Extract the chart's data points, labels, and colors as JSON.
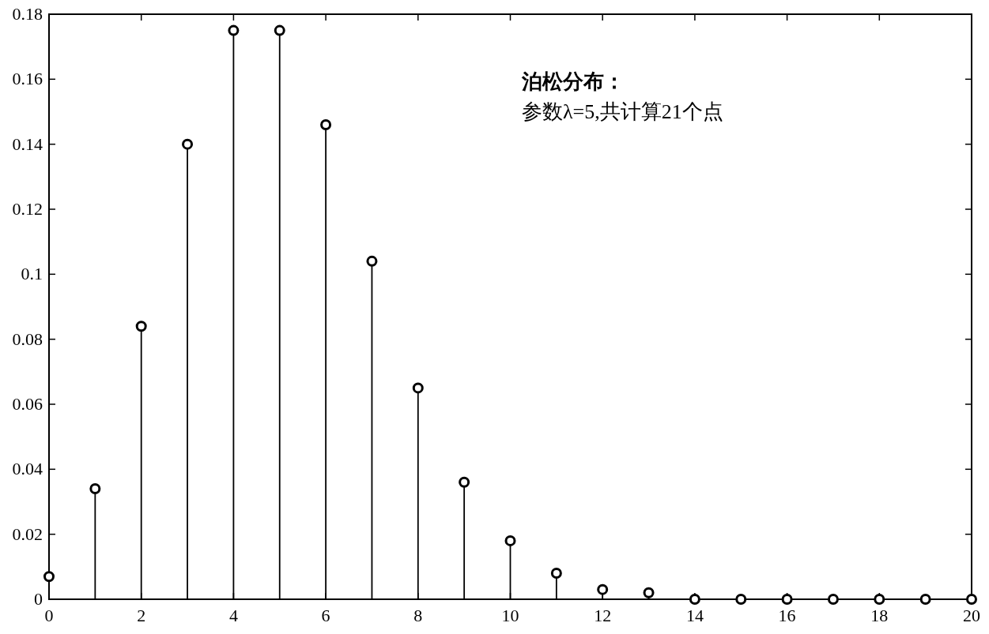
{
  "chart_data": {
    "type": "lollipop",
    "x": [
      0,
      1,
      2,
      3,
      4,
      5,
      6,
      7,
      8,
      9,
      10,
      11,
      12,
      13,
      14,
      15,
      16,
      17,
      18,
      19,
      20
    ],
    "values": [
      0.007,
      0.034,
      0.084,
      0.14,
      0.175,
      0.175,
      0.146,
      0.104,
      0.065,
      0.036,
      0.018,
      0.008,
      0.003,
      0.002,
      0,
      0,
      0,
      0,
      0,
      0,
      0
    ],
    "color": "#000000",
    "marker": "circle",
    "xlim": [
      0,
      20
    ],
    "xticks": [
      0,
      2,
      4,
      6,
      8,
      10,
      12,
      14,
      16,
      18,
      20
    ],
    "ylim": [
      0,
      0.18
    ],
    "yticks": [
      0,
      0.02,
      0.04,
      0.06,
      0.08,
      0.1,
      0.12,
      0.14,
      0.16,
      0.18
    ],
    "annotations": [
      "泊松分布：",
      "参数λ=5,共计算21个点"
    ]
  }
}
